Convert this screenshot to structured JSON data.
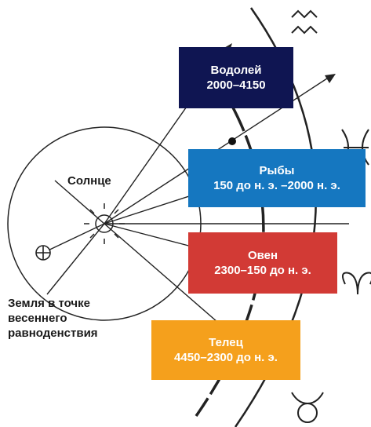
{
  "labels": {
    "sun": "Солнце",
    "earth": [
      "Земля в точке",
      "весеннего",
      "равноденствия"
    ]
  },
  "eras": [
    {
      "name": "Водолей",
      "period": "2000–4150",
      "color": "#0f1552"
    },
    {
      "name": "Рыбы",
      "period": "150 до н. э. –2000 н. э.",
      "color": "#1577c0"
    },
    {
      "name": "Овен",
      "period": "2300–150 до н. э.",
      "color": "#d23a35"
    },
    {
      "name": "Телец",
      "period": "4450–2300 до н. э.",
      "color": "#f5a01c"
    }
  ],
  "zodiac_symbols": [
    {
      "name": "aquarius-symbol",
      "glyph": "≈"
    },
    {
      "name": "pisces-symbol",
      "glyph": "♓"
    },
    {
      "name": "aries-symbol",
      "glyph": "♈"
    },
    {
      "name": "taurus-symbol",
      "glyph": "♉"
    }
  ]
}
